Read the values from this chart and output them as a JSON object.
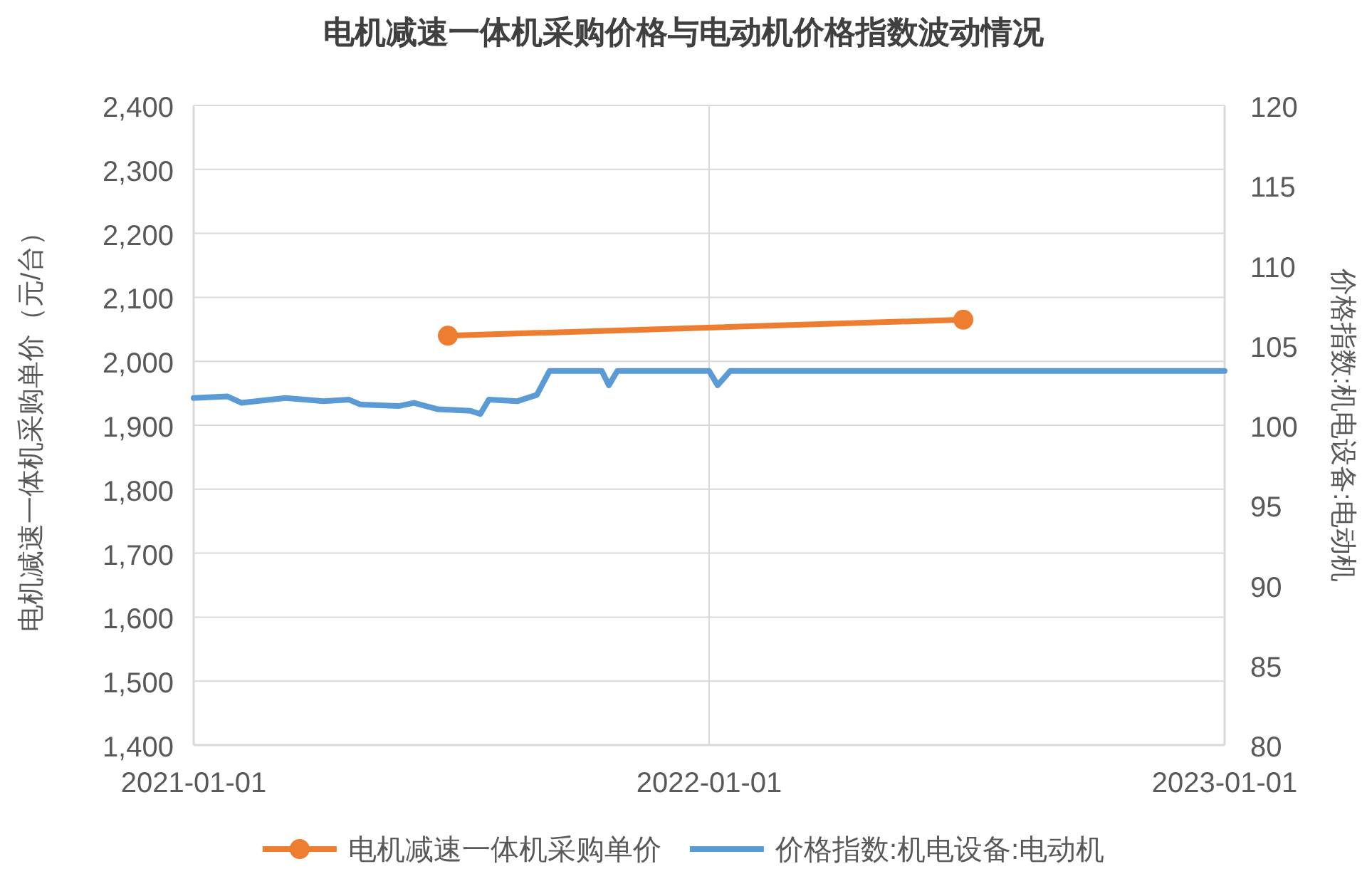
{
  "chart_data": {
    "type": "line",
    "title": "电机减速一体机采购价格与电动机价格指数波动情况",
    "ylabel": "电机减速一体机采购单价（元/台）",
    "y2label": "价格指数:机电设备:电动机",
    "xlim": [
      "2021-01-01",
      "2023-01-01"
    ],
    "xticks": [
      "2021-01-01",
      "2022-01-01",
      "2023-01-01"
    ],
    "ylim": [
      1400,
      2400
    ],
    "yticks": [
      {
        "value": 1400,
        "label": "1,400"
      },
      {
        "value": 1500,
        "label": "1,500"
      },
      {
        "value": 1600,
        "label": "1,600"
      },
      {
        "value": 1700,
        "label": "1,700"
      },
      {
        "value": 1800,
        "label": "1,800"
      },
      {
        "value": 1900,
        "label": "1,900"
      },
      {
        "value": 2000,
        "label": "2,000"
      },
      {
        "value": 2100,
        "label": "2,100"
      },
      {
        "value": 2200,
        "label": "2,200"
      },
      {
        "value": 2300,
        "label": "2,300"
      },
      {
        "value": 2400,
        "label": "2,400"
      }
    ],
    "y2lim": [
      80,
      120
    ],
    "y2ticks": [
      80,
      85,
      90,
      95,
      100,
      105,
      110,
      115,
      120
    ],
    "grid": true,
    "legend": "bottom",
    "series": [
      {
        "name": "电机减速一体机采购单价",
        "color": "#ed7d31",
        "marker": "circle",
        "x": [
          "2021-06-30",
          "2022-06-30"
        ],
        "values": [
          2040,
          2065
        ]
      },
      {
        "name": "价格指数:机电设备:电动机",
        "color": "#5b9bd5",
        "axis": "y2",
        "marker": "none",
        "x": [
          "2021-01-01",
          "2021-01-25",
          "2021-02-04",
          "2021-03-07",
          "2021-04-03",
          "2021-04-21",
          "2021-04-29",
          "2021-05-26",
          "2021-06-06",
          "2021-06-23",
          "2021-07-16",
          "2021-07-23",
          "2021-07-29",
          "2021-08-18",
          "2021-09-01",
          "2021-09-10",
          "2021-10-17",
          "2021-10-22",
          "2021-10-28",
          "2022-01-01",
          "2022-01-07",
          "2022-01-16",
          "2023-01-01"
        ],
        "values": [
          101.7,
          101.8,
          101.4,
          101.7,
          101.5,
          101.6,
          101.3,
          101.2,
          101.4,
          101.0,
          100.9,
          100.7,
          101.6,
          101.5,
          101.9,
          103.4,
          103.4,
          102.5,
          103.4,
          103.4,
          102.5,
          103.4,
          103.4
        ]
      }
    ]
  }
}
